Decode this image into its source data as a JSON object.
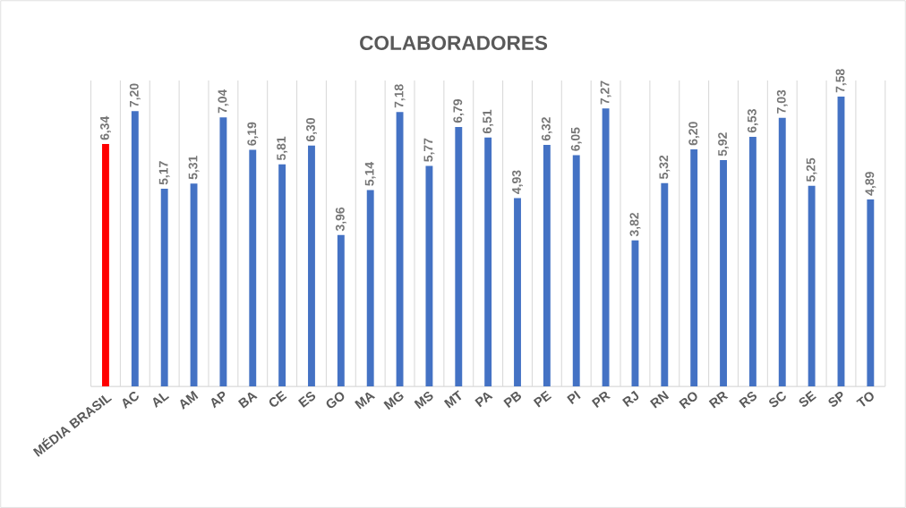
{
  "chart_data": {
    "type": "bar",
    "title": "COLABORADORES",
    "categories": [
      "MÉDIA BRASIL",
      "AC",
      "AL",
      "AM",
      "AP",
      "BA",
      "CE",
      "ES",
      "GO",
      "MA",
      "MG",
      "MS",
      "MT",
      "PA",
      "PB",
      "PE",
      "PI",
      "PR",
      "RJ",
      "RN",
      "RO",
      "RR",
      "RS",
      "SC",
      "SE",
      "SP",
      "TO"
    ],
    "values": [
      6.34,
      7.2,
      5.17,
      5.31,
      7.04,
      6.19,
      5.81,
      6.3,
      3.96,
      5.14,
      7.18,
      5.77,
      6.79,
      6.51,
      4.93,
      6.32,
      6.05,
      7.27,
      3.82,
      5.32,
      6.2,
      5.92,
      6.53,
      7.03,
      5.25,
      7.58,
      4.89
    ],
    "value_labels": [
      "6,34",
      "7,20",
      "5,17",
      "5,31",
      "7,04",
      "6,19",
      "5,81",
      "6,30",
      "3,96",
      "5,14",
      "7,18",
      "5,77",
      "6,79",
      "6,51",
      "4,93",
      "6,32",
      "6,05",
      "7,27",
      "3,82",
      "5,32",
      "6,20",
      "5,92",
      "6,53",
      "7,03",
      "5,25",
      "7,58",
      "4,89"
    ],
    "colors": [
      "#ff0000",
      "#4472c4",
      "#4472c4",
      "#4472c4",
      "#4472c4",
      "#4472c4",
      "#4472c4",
      "#4472c4",
      "#4472c4",
      "#4472c4",
      "#4472c4",
      "#4472c4",
      "#4472c4",
      "#4472c4",
      "#4472c4",
      "#4472c4",
      "#4472c4",
      "#4472c4",
      "#4472c4",
      "#4472c4",
      "#4472c4",
      "#4472c4",
      "#4472c4",
      "#4472c4",
      "#4472c4",
      "#4472c4",
      "#4472c4"
    ],
    "grid": "x"
  }
}
